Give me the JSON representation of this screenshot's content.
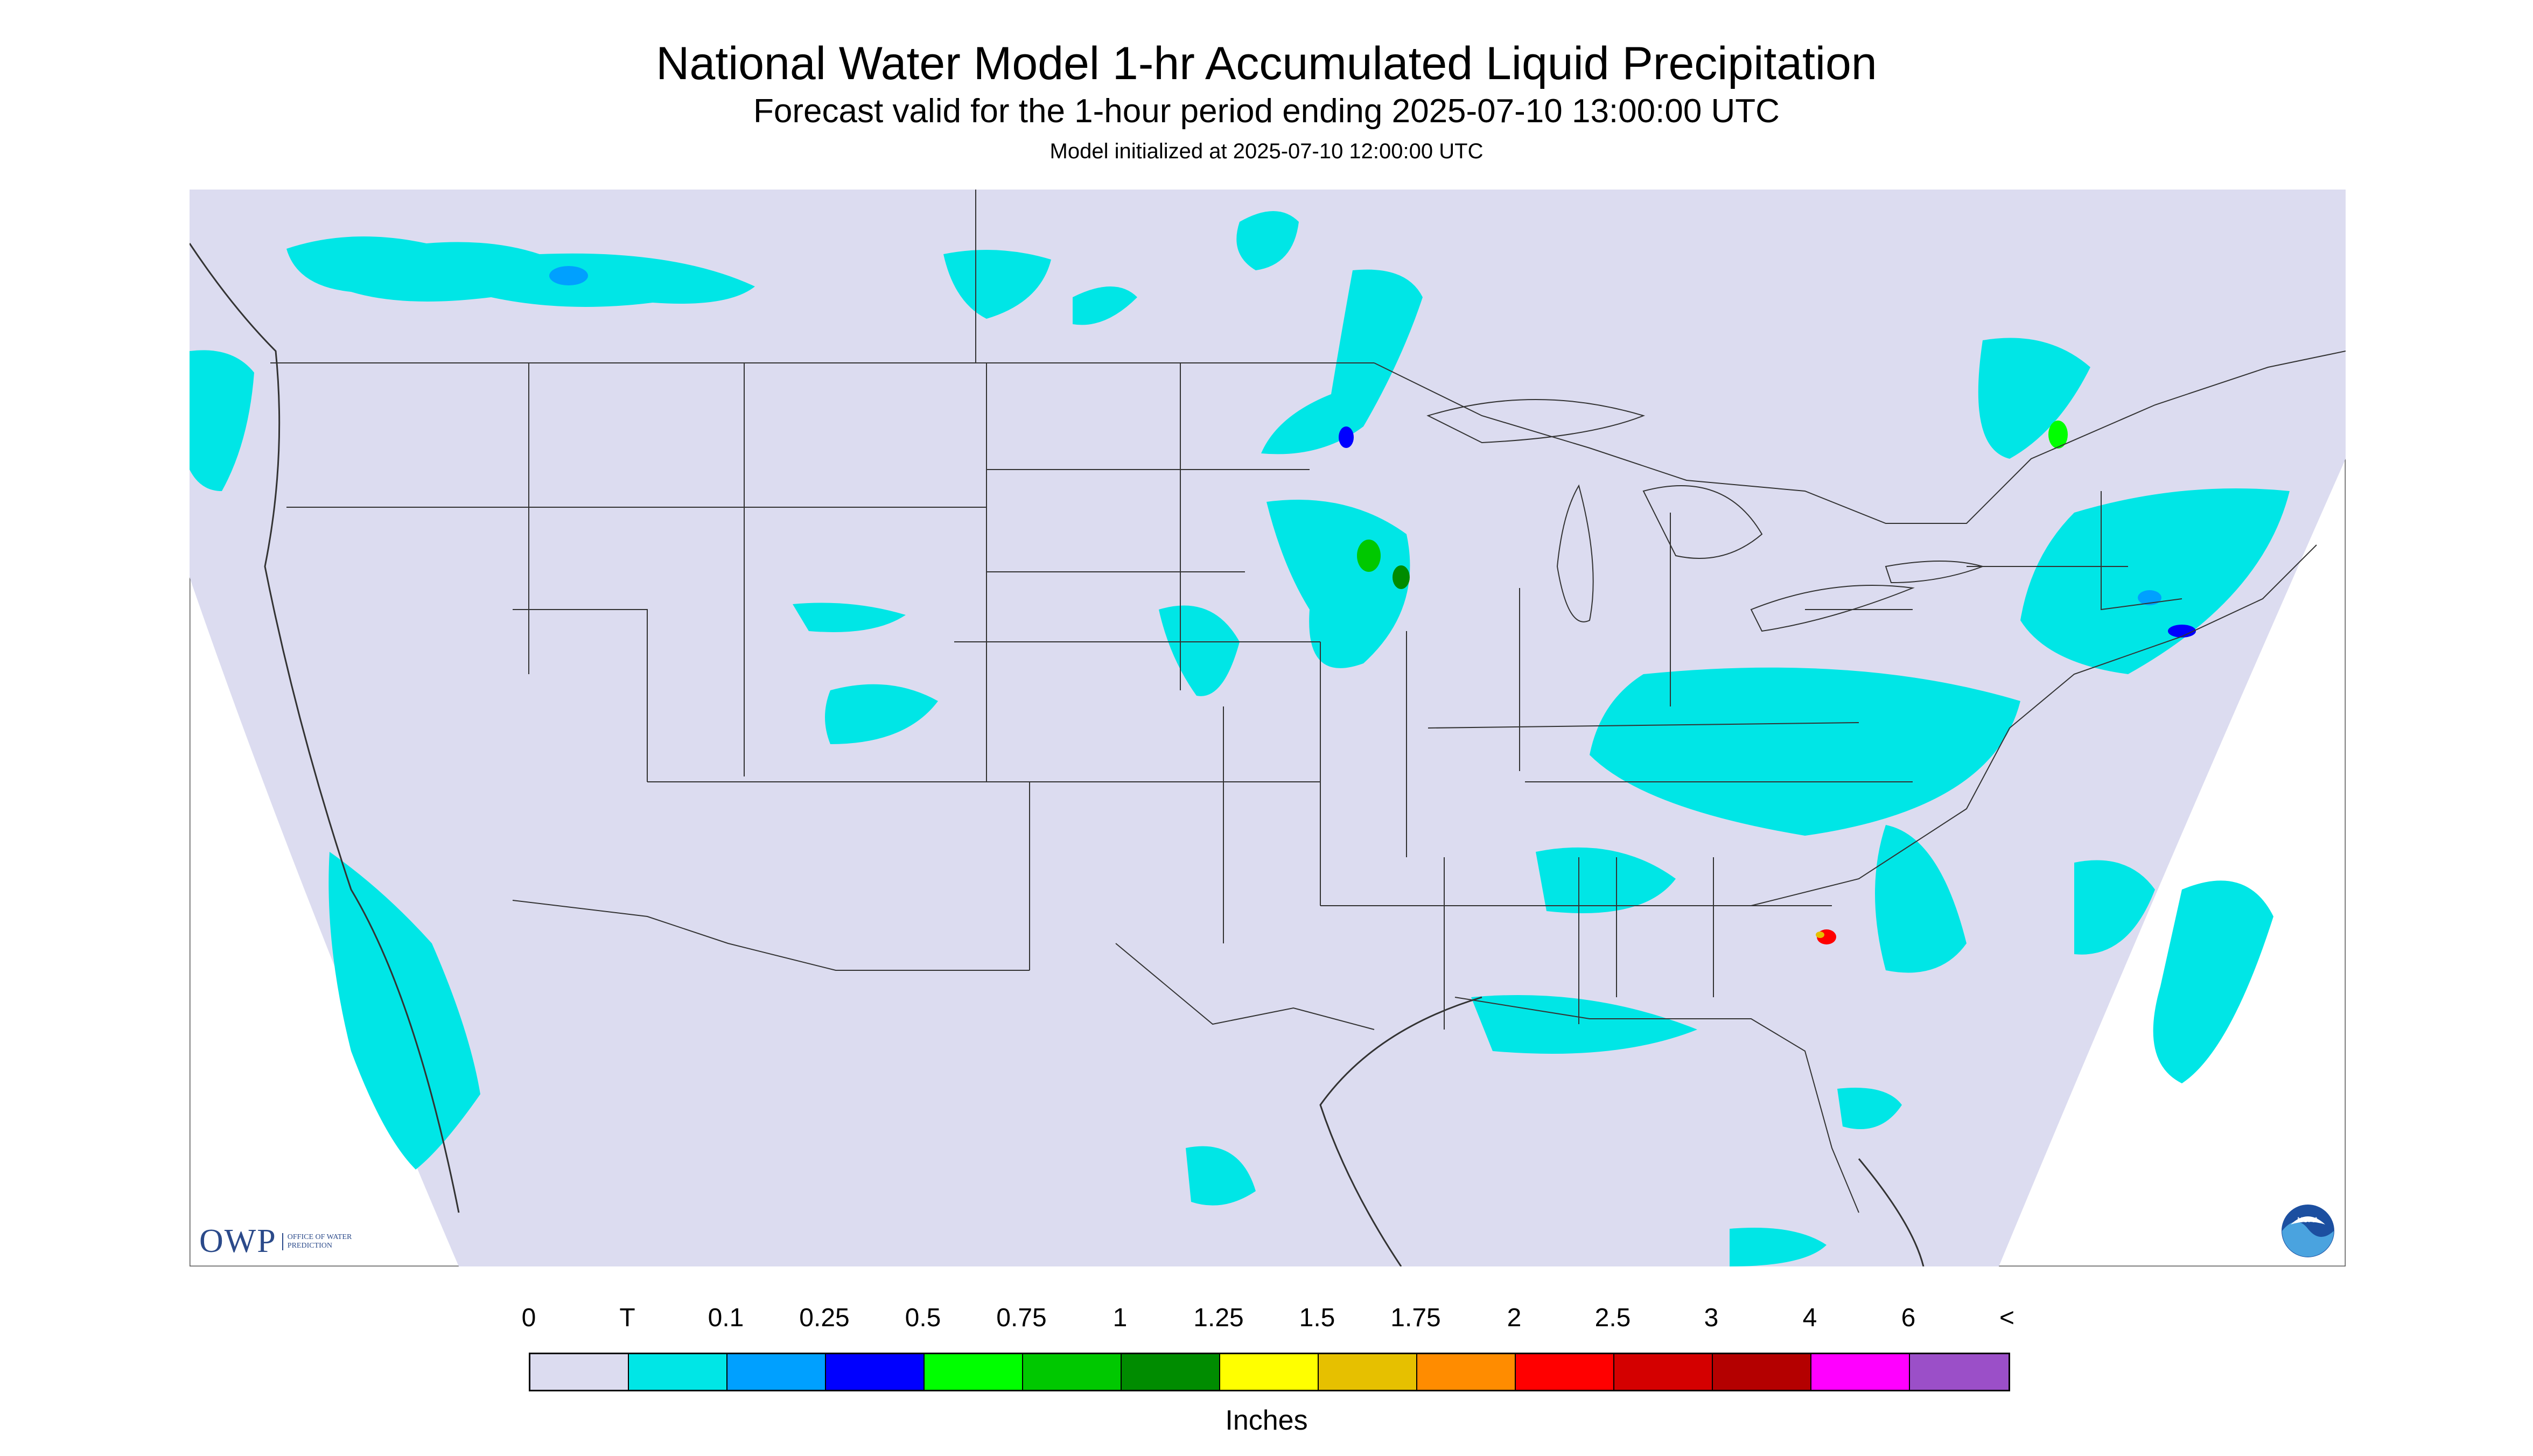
{
  "header": {
    "title": "National Water Model 1-hr Accumulated Liquid Precipitation",
    "subtitle": "Forecast valid for the 1-hour period ending 2025-07-10 13:00:00 UTC",
    "init": "Model initialized at 2025-07-10 12:00:00 UTC"
  },
  "map": {
    "background_color": "#dcdcf0",
    "outside_color": "#ffffff",
    "border_color": "#333333"
  },
  "logos": {
    "owp_text": "OWP",
    "owp_small": "OFFICE OF WATER PREDICTION",
    "noaa_text": "NOAA"
  },
  "legend": {
    "labels": [
      "0",
      "T",
      "0.1",
      "0.25",
      "0.5",
      "0.75",
      "1",
      "1.25",
      "1.5",
      "1.75",
      "2",
      "2.5",
      "3",
      "4",
      "6",
      "<"
    ],
    "colors": [
      "#dcdcf0",
      "#00e6e6",
      "#00a0ff",
      "#0000ff",
      "#00ff00",
      "#00c800",
      "#008c00",
      "#ffff00",
      "#e6c000",
      "#ff8c00",
      "#ff0000",
      "#d40000",
      "#b40000",
      "#ff00ff",
      "#9b4fc8"
    ],
    "units": "Inches"
  }
}
